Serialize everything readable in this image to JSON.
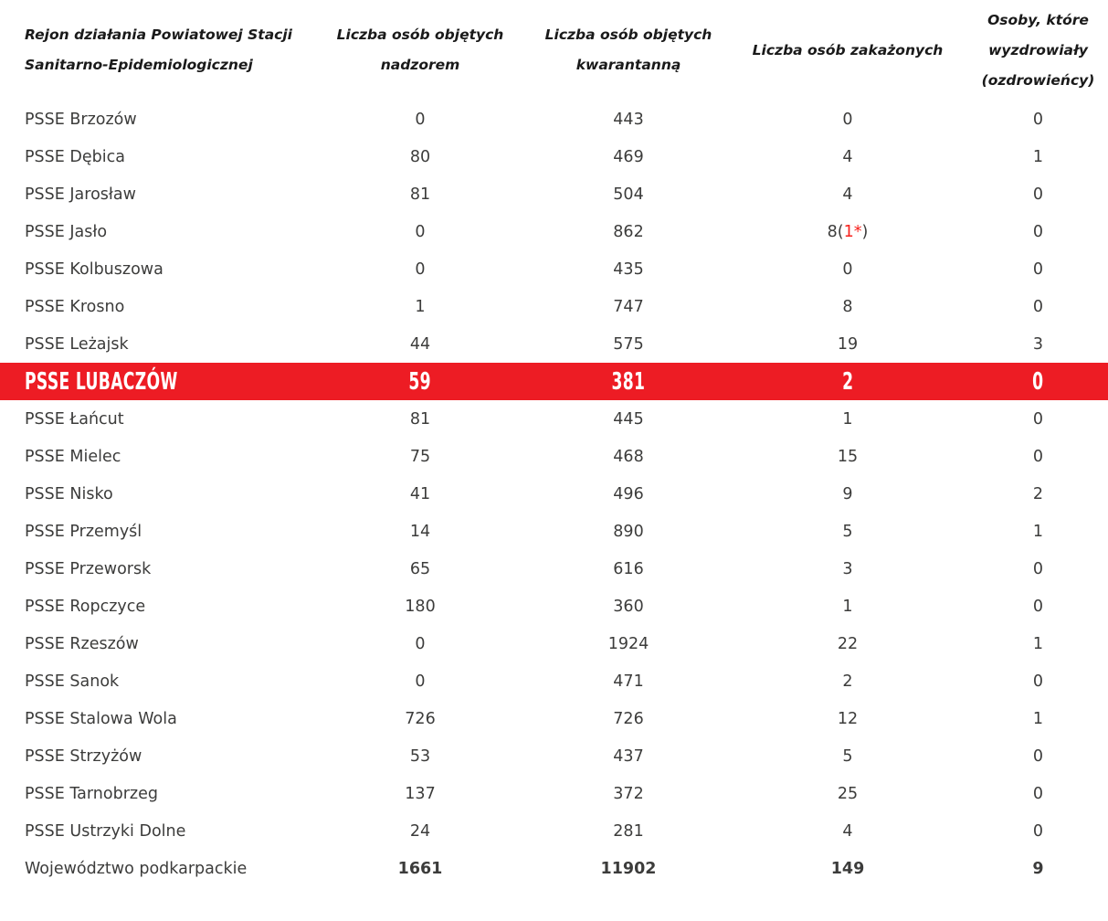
{
  "table": {
    "header": {
      "region": [
        "Rejon działania Powiatowej Stacji",
        "Sanitarno-Epidemiologicznej"
      ],
      "supervised": [
        "Liczba osób objętych",
        "nadzorem"
      ],
      "quarantined": [
        "Liczba osób objętych",
        "kwarantanną"
      ],
      "infected": [
        "Liczba osób zakażonych"
      ],
      "recovered": [
        "Osoby, które",
        "wyzdrowiały",
        "(ozdrowieńcy)"
      ]
    },
    "rows": [
      {
        "name": "PSSE Brzozów",
        "supervised": "0",
        "quarantined": "443",
        "infected": "0",
        "recovered": "0"
      },
      {
        "name": "PSSE Dębica",
        "supervised": "80",
        "quarantined": "469",
        "infected": "4",
        "recovered": "1"
      },
      {
        "name": "PSSE Jarosław",
        "supervised": "81",
        "quarantined": "504",
        "infected": "4",
        "recovered": "0"
      },
      {
        "name": "PSSE Jasło",
        "supervised": "0",
        "quarantined": "862",
        "infected_parts": [
          {
            "text": "8("
          },
          {
            "text": "1*",
            "red": true
          },
          {
            "text": ")"
          }
        ],
        "recovered": "0"
      },
      {
        "name": "PSSE Kolbuszowa",
        "supervised": "0",
        "quarantined": "435",
        "infected": "0",
        "recovered": "0"
      },
      {
        "name": "PSSE Krosno",
        "supervised": "1",
        "quarantined": "747",
        "infected": "8",
        "recovered": "0"
      },
      {
        "name": "PSSE Leżajsk",
        "supervised": "44",
        "quarantined": "575",
        "infected": "19",
        "recovered": "3"
      },
      {
        "name": "PSSE LUBACZÓW",
        "supervised": "59",
        "quarantined": "381",
        "infected": "2",
        "recovered": "0",
        "highlight": true
      },
      {
        "name": "PSSE Łańcut",
        "supervised": "81",
        "quarantined": "445",
        "infected": "1",
        "recovered": "0"
      },
      {
        "name": "PSSE Mielec",
        "supervised": "75",
        "quarantined": "468",
        "infected": "15",
        "recovered": "0"
      },
      {
        "name": "PSSE Nisko",
        "supervised": "41",
        "quarantined": "496",
        "infected": "9",
        "recovered": "2"
      },
      {
        "name": "PSSE Przemyśl",
        "supervised": "14",
        "quarantined": "890",
        "infected": "5",
        "recovered": "1"
      },
      {
        "name": "PSSE Przeworsk",
        "supervised": "65",
        "quarantined": "616",
        "infected": "3",
        "recovered": "0"
      },
      {
        "name": "PSSE Ropczyce",
        "supervised": "180",
        "quarantined": "360",
        "infected": "1",
        "recovered": "0"
      },
      {
        "name": "PSSE Rzeszów",
        "supervised": "0",
        "quarantined": "1924",
        "infected": "22",
        "recovered": "1"
      },
      {
        "name": "PSSE Sanok",
        "supervised": "0",
        "quarantined": "471",
        "infected": "2",
        "recovered": "0"
      },
      {
        "name": "PSSE Stalowa Wola",
        "supervised": "726",
        "quarantined": "726",
        "infected": "12",
        "recovered": "1"
      },
      {
        "name": "PSSE Strzyżów",
        "supervised": "53",
        "quarantined": "437",
        "infected": "5",
        "recovered": "0"
      },
      {
        "name": "PSSE Tarnobrzeg",
        "supervised": "137",
        "quarantined": "372",
        "infected": "25",
        "recovered": "0"
      },
      {
        "name": "PSSE Ustrzyki Dolne",
        "supervised": "24",
        "quarantined": "281",
        "infected": "4",
        "recovered": "0"
      },
      {
        "name": "Województwo podkarpackie",
        "supervised": "1661",
        "quarantined": "11902",
        "infected": "149",
        "recovered": "9",
        "total": true
      }
    ]
  },
  "colors": {
    "highlight_background": "#ED1C24",
    "highlight_text": "#FFFFFF",
    "note_red": "#F7221D",
    "body_text": "#3C3C3B",
    "header_text": "#1A1A1A",
    "page_background": "#FFFFFF"
  }
}
